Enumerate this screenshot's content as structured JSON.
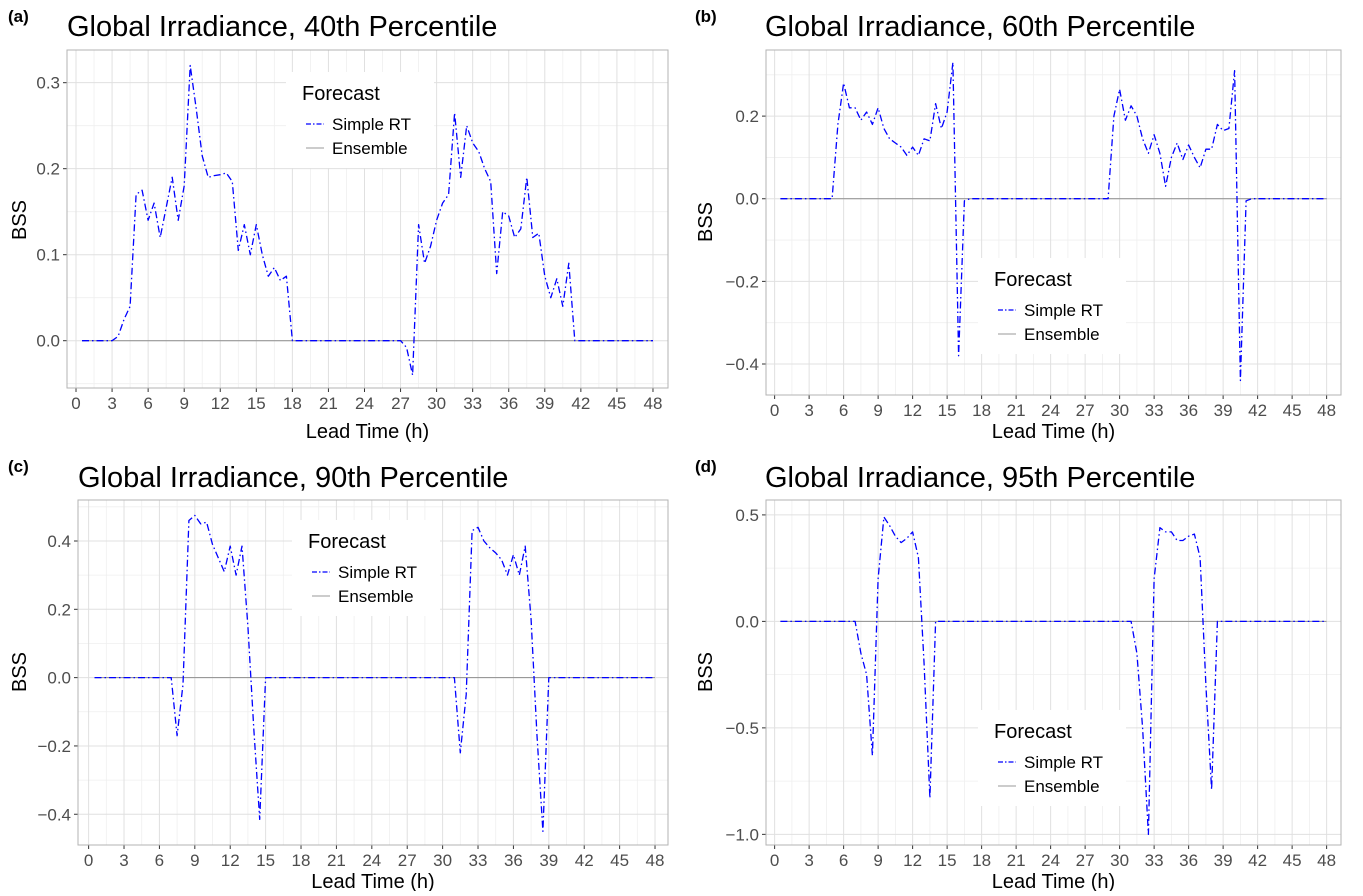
{
  "legend": {
    "title": "Forecast",
    "items": [
      {
        "label": "Simple RT",
        "color": "#0000ff",
        "dash": "dotdash"
      },
      {
        "label": "Ensemble",
        "color": "#999999",
        "dash": "solid"
      }
    ]
  },
  "chart_data": [
    {
      "type": "line",
      "tag": "(a)",
      "title": "Global Irradiance, 40th Percentile",
      "xlabel": "Lead Time (h)",
      "ylabel": "BSS",
      "xlim": [
        -0.75,
        49.25
      ],
      "ylim": [
        -0.055,
        0.338
      ],
      "xticks": [
        0,
        3,
        6,
        9,
        12,
        15,
        18,
        21,
        24,
        27,
        30,
        33,
        36,
        39,
        42,
        45,
        48
      ],
      "yticks": [
        0.0,
        0.1,
        0.2,
        0.3
      ],
      "ytick_labels": [
        "0.0",
        "0.1",
        "0.2",
        "0.3"
      ],
      "grid": true,
      "legend_position": "top-center",
      "series": [
        {
          "name": "Simple RT",
          "x": [
            0.5,
            1,
            1.5,
            2,
            2.5,
            3,
            3.5,
            4,
            4.5,
            5,
            5.5,
            6,
            6.5,
            7,
            7.5,
            8,
            8.5,
            9,
            9.5,
            10,
            10.5,
            11,
            11.5,
            12,
            12.5,
            13,
            13.5,
            14,
            14.5,
            15,
            15.5,
            16,
            16.5,
            17,
            17.5,
            18,
            18.5,
            19,
            20,
            21,
            22,
            23,
            24,
            25,
            26,
            27,
            27.5,
            28,
            28.5,
            29,
            29.5,
            30,
            30.5,
            31,
            31.5,
            32,
            32.5,
            33,
            33.5,
            34,
            34.5,
            35,
            35.5,
            36,
            36.5,
            37,
            37.5,
            38,
            38.5,
            39,
            39.5,
            40,
            40.5,
            41,
            41.5,
            42,
            42.5,
            43,
            44,
            45,
            46,
            47,
            48
          ],
          "y": [
            0,
            0,
            0,
            0,
            0,
            0,
            0.005,
            0.025,
            0.04,
            0.17,
            0.175,
            0.14,
            0.16,
            0.12,
            0.155,
            0.19,
            0.14,
            0.18,
            0.32,
            0.27,
            0.215,
            0.19,
            0.192,
            0.193,
            0.195,
            0.185,
            0.105,
            0.135,
            0.1,
            0.135,
            0.1,
            0.075,
            0.085,
            0.07,
            0.075,
            0,
            0,
            0,
            0,
            0,
            0,
            0,
            0,
            0,
            0,
            0,
            -0.008,
            -0.04,
            0.135,
            0.09,
            0.11,
            0.14,
            0.16,
            0.17,
            0.265,
            0.19,
            0.25,
            0.23,
            0.22,
            0.2,
            0.185,
            0.078,
            0.15,
            0.145,
            0.12,
            0.13,
            0.19,
            0.12,
            0.125,
            0.075,
            0.05,
            0.072,
            0.04,
            0.09,
            0,
            0,
            0,
            0,
            0,
            0,
            0,
            0,
            0
          ]
        },
        {
          "name": "Ensemble",
          "x": [
            0.5,
            48
          ],
          "y": [
            0,
            0
          ]
        }
      ]
    },
    {
      "type": "line",
      "tag": "(b)",
      "title": "Global Irradiance, 60th Percentile",
      "xlabel": "Lead Time (h)",
      "ylabel": "BSS",
      "xlim": [
        -0.75,
        49.25
      ],
      "ylim": [
        -0.475,
        0.36
      ],
      "xticks": [
        0,
        3,
        6,
        9,
        12,
        15,
        18,
        21,
        24,
        27,
        30,
        33,
        36,
        39,
        42,
        45,
        48
      ],
      "yticks": [
        -0.4,
        -0.2,
        0.0,
        0.2
      ],
      "ytick_labels": [
        "−0.4",
        "−0.2",
        "0.0",
        "0.2"
      ],
      "grid": true,
      "legend_position": "bottom-center",
      "series": [
        {
          "name": "Simple RT",
          "x": [
            0.5,
            1,
            2,
            3,
            4,
            5,
            5.5,
            6,
            6.5,
            7,
            7.5,
            8,
            8.5,
            9,
            9.5,
            10,
            10.5,
            11,
            11.5,
            12,
            12.5,
            13,
            13.5,
            14,
            14.5,
            15,
            15.5,
            16,
            16.5,
            17,
            17.5,
            18,
            19,
            20,
            21,
            22,
            23,
            24,
            25,
            26,
            27,
            28,
            29,
            29.5,
            30,
            30.5,
            31,
            31.5,
            32,
            32.5,
            33,
            33.5,
            34,
            34.5,
            35,
            35.5,
            36,
            36.5,
            37,
            37.5,
            38,
            38.5,
            39,
            39.5,
            40,
            40.5,
            41,
            41.5,
            42,
            43,
            44,
            45,
            46,
            47,
            48
          ],
          "y": [
            0,
            0,
            0,
            0,
            0,
            0,
            0.18,
            0.28,
            0.22,
            0.22,
            0.19,
            0.21,
            0.18,
            0.22,
            0.17,
            0.145,
            0.135,
            0.125,
            0.105,
            0.125,
            0.105,
            0.145,
            0.14,
            0.23,
            0.17,
            0.21,
            0.33,
            -0.38,
            -0.005,
            0,
            0,
            0,
            0,
            0,
            0,
            0,
            0,
            0,
            0,
            0,
            0,
            0,
            0,
            0.2,
            0.265,
            0.19,
            0.225,
            0.2,
            0.145,
            0.11,
            0.155,
            0.11,
            0.03,
            0.1,
            0.135,
            0.095,
            0.13,
            0.1,
            0.075,
            0.12,
            0.12,
            0.18,
            0.165,
            0.17,
            0.31,
            -0.44,
            -0.005,
            0,
            0,
            0,
            0,
            0,
            0,
            0,
            0
          ]
        },
        {
          "name": "Ensemble",
          "x": [
            0.5,
            48
          ],
          "y": [
            0,
            0
          ]
        }
      ]
    },
    {
      "type": "line",
      "tag": "(c)",
      "title": "Global Irradiance, 90th Percentile",
      "xlabel": "Lead Time (h)",
      "ylabel": "BSS",
      "xlim": [
        -0.9,
        49.1
      ],
      "ylim": [
        -0.49,
        0.52
      ],
      "xticks": [
        0,
        3,
        6,
        9,
        12,
        15,
        18,
        21,
        24,
        27,
        30,
        33,
        36,
        39,
        42,
        45,
        48
      ],
      "yticks": [
        -0.4,
        -0.2,
        0.0,
        0.2,
        0.4
      ],
      "ytick_labels": [
        "−0.4",
        "−0.2",
        "0.0",
        "0.2",
        "0.4"
      ],
      "grid": true,
      "legend_position": "top-center",
      "series": [
        {
          "name": "Simple RT",
          "x": [
            0.5,
            1,
            2,
            3,
            4,
            5,
            6,
            7,
            7.5,
            8,
            8.5,
            9,
            9.5,
            10,
            10.5,
            11,
            11.5,
            12,
            12.5,
            13,
            13.5,
            14,
            14.5,
            15,
            16,
            17,
            18,
            19,
            20,
            21,
            22,
            23,
            24,
            25,
            26,
            27,
            28,
            29,
            30,
            31,
            31.5,
            32,
            32.5,
            33,
            33.5,
            34,
            34.5,
            35,
            35.5,
            36,
            36.5,
            37,
            37.5,
            38,
            38.5,
            39,
            40,
            41,
            42,
            43,
            44,
            45,
            46,
            47,
            48
          ],
          "y": [
            0,
            0,
            0,
            0,
            0,
            0,
            0,
            0,
            -0.17,
            -0.02,
            0.46,
            0.475,
            0.45,
            0.455,
            0.39,
            0.35,
            0.31,
            0.385,
            0.3,
            0.385,
            0.15,
            -0.15,
            -0.415,
            0,
            0,
            0,
            0,
            0,
            0,
            0,
            0,
            0,
            0,
            0,
            0,
            0,
            0,
            0,
            0,
            0,
            -0.22,
            -0.05,
            0.43,
            0.44,
            0.4,
            0.38,
            0.365,
            0.345,
            0.3,
            0.36,
            0.3,
            0.385,
            0.17,
            -0.17,
            -0.45,
            0,
            0,
            0,
            0,
            0,
            0,
            0,
            0,
            0,
            0
          ]
        },
        {
          "name": "Ensemble",
          "x": [
            0.5,
            48
          ],
          "y": [
            0,
            0
          ]
        }
      ]
    },
    {
      "type": "line",
      "tag": "(d)",
      "title": "Global Irradiance, 95th Percentile",
      "xlabel": "Lead Time (h)",
      "ylabel": "BSS",
      "xlim": [
        -0.75,
        49.25
      ],
      "ylim": [
        -1.05,
        0.57
      ],
      "xticks": [
        0,
        3,
        6,
        9,
        12,
        15,
        18,
        21,
        24,
        27,
        30,
        33,
        36,
        39,
        42,
        45,
        48
      ],
      "yticks": [
        -1.0,
        -0.5,
        0.0,
        0.5
      ],
      "ytick_labels": [
        "−1.0",
        "−0.5",
        "0.0",
        "0.5"
      ],
      "grid": true,
      "legend_position": "bottom-center",
      "series": [
        {
          "name": "Simple RT",
          "x": [
            0.5,
            1,
            2,
            3,
            4,
            5,
            6,
            7,
            7.5,
            8,
            8.5,
            9,
            9.5,
            10,
            10.5,
            11,
            11.5,
            12,
            12.5,
            13,
            13.5,
            14,
            14.5,
            15,
            16,
            17,
            18,
            19,
            20,
            21,
            22,
            23,
            24,
            25,
            26,
            27,
            28,
            29,
            30,
            31,
            31.5,
            32,
            32.5,
            33,
            33.5,
            34,
            34.5,
            35,
            35.5,
            36,
            36.5,
            37,
            37.5,
            38,
            38.5,
            39,
            40,
            41,
            42,
            43,
            44,
            45,
            46,
            47,
            48
          ],
          "y": [
            0,
            0,
            0,
            0,
            0,
            0,
            0,
            0,
            -0.15,
            -0.25,
            -0.63,
            0.2,
            0.49,
            0.45,
            0.4,
            0.37,
            0.39,
            0.42,
            0.3,
            -0.2,
            -0.83,
            0,
            0,
            0,
            0,
            0,
            0,
            0,
            0,
            0,
            0,
            0,
            0,
            0,
            0,
            0,
            0,
            0,
            0,
            0,
            -0.15,
            -0.5,
            -1.0,
            0.2,
            0.44,
            0.42,
            0.42,
            0.38,
            0.38,
            0.4,
            0.41,
            0.3,
            -0.3,
            -0.79,
            0,
            0,
            0,
            0,
            0,
            0,
            0,
            0,
            0,
            0,
            0
          ]
        },
        {
          "name": "Ensemble",
          "x": [
            0.5,
            48
          ],
          "y": [
            0,
            0
          ]
        }
      ]
    }
  ]
}
